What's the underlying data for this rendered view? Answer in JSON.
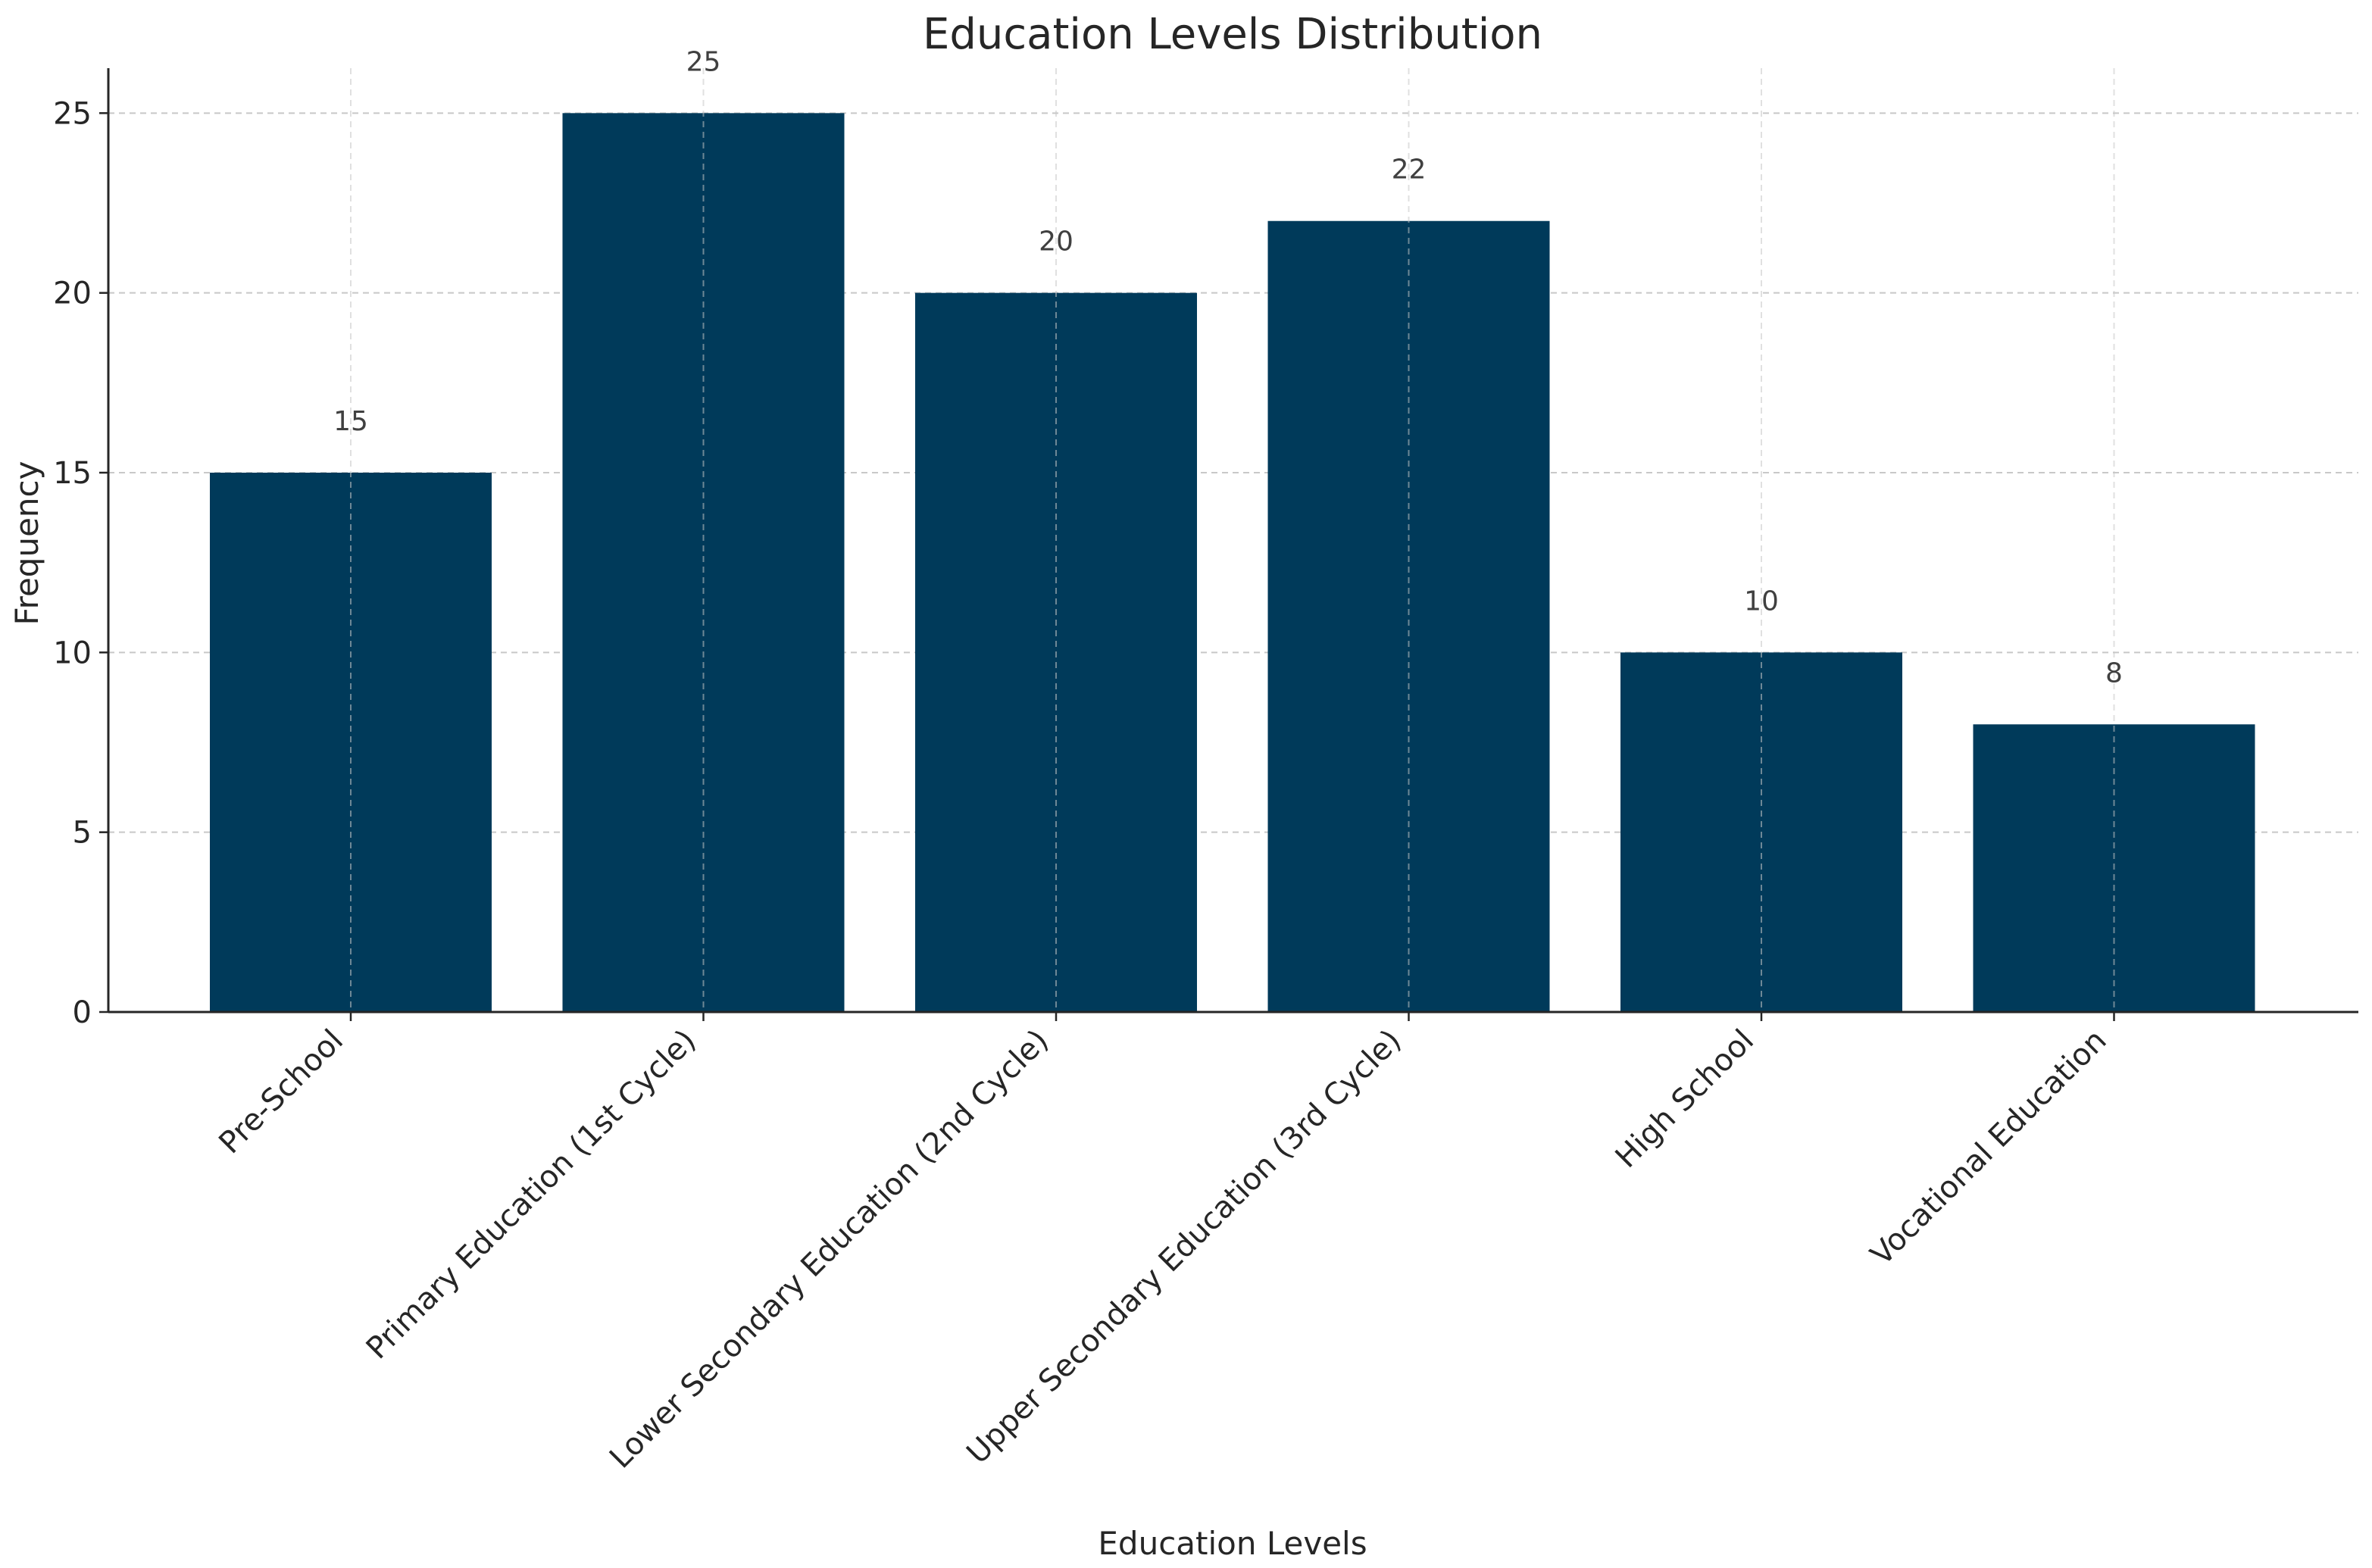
{
  "chart_data": {
    "type": "bar",
    "title": "Education Levels Distribution",
    "xlabel": "Education Levels",
    "ylabel": "Frequency",
    "categories": [
      "Pre-School",
      "Primary Education (1st Cycle)",
      "Lower Secondary Education (2nd Cycle)",
      "Upper Secondary Education (3rd Cycle)",
      "High School",
      "Vocational Education"
    ],
    "values": [
      15,
      25,
      20,
      22,
      10,
      8
    ],
    "data_labels": [
      "15",
      "25",
      "20",
      "22",
      "10",
      "8"
    ],
    "ylim": [
      0,
      26.25
    ],
    "yticks": [
      0,
      5,
      10,
      15,
      20,
      25
    ],
    "ytick_labels": [
      "0",
      "5",
      "10",
      "15",
      "20",
      "25"
    ],
    "grid": true,
    "bar_color": "#003a5a",
    "grid_color": "#c8c8c8"
  }
}
